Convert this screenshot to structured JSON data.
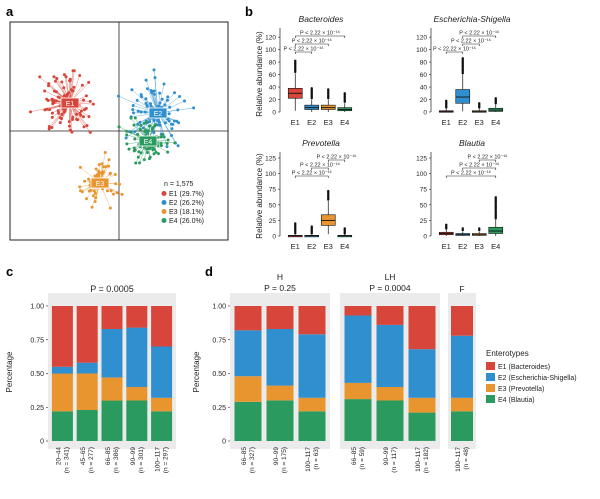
{
  "colors": {
    "E1": "#d8453a",
    "E2": "#2f8fcf",
    "E3": "#e8952f",
    "E4": "#2a9a5e",
    "dark": "#36474f",
    "panel_bg": "#ebebeb"
  },
  "panel_labels": {
    "a": "a",
    "b": "b",
    "c": "c",
    "d": "d"
  },
  "chart_data": [
    {
      "panel": "a",
      "type": "scatter",
      "title": "",
      "annotation": "n = 1,575",
      "clusters": [
        {
          "name": "E1",
          "label": "E1 (29.7%)",
          "share": 29.7,
          "color": "#d8453a"
        },
        {
          "name": "E2",
          "label": "E2 (26.2%)",
          "share": 26.2,
          "color": "#2f8fcf"
        },
        {
          "name": "E3",
          "label": "E3 (18.1%)",
          "share": 18.1,
          "color": "#e8952f"
        },
        {
          "name": "E4",
          "label": "E4 (26.0%)",
          "share": 26.0,
          "color": "#2a9a5e"
        }
      ]
    },
    {
      "panel": "b",
      "type": "box",
      "ylabel": "Relative abundance (%)",
      "categories": [
        "E1",
        "E2",
        "E3",
        "E4"
      ],
      "facets": [
        {
          "title": "Bacteroides",
          "ylim": [
            0,
            125
          ],
          "yticks": [
            0,
            20,
            40,
            60,
            80,
            100,
            120
          ],
          "p_labels": [
            "P < 2.22 × 10⁻¹⁶",
            "P < 2.22 × 10⁻¹⁶",
            "P < 2.22 × 10⁻¹⁶"
          ],
          "boxes": [
            {
              "q1": 22,
              "median": 30,
              "q3": 38,
              "whisker_low": 2,
              "whisker_high": 62,
              "out_max": 82
            },
            {
              "q1": 4,
              "median": 7,
              "q3": 11,
              "whisker_low": 0,
              "whisker_high": 20,
              "out_max": 38
            },
            {
              "q1": 4,
              "median": 7,
              "q3": 11,
              "whisker_low": 0,
              "whisker_high": 20,
              "out_max": 36
            },
            {
              "q1": 2,
              "median": 4,
              "q3": 7,
              "whisker_low": 0,
              "whisker_high": 14,
              "out_max": 30
            }
          ]
        },
        {
          "title": "Escherichia-Shigella",
          "ylim": [
            0,
            125
          ],
          "yticks": [
            0,
            20,
            40,
            60,
            80,
            100,
            120
          ],
          "p_labels": [
            "P < 22.22 × 10⁻¹⁶",
            "P < 2.22 × 10⁻¹⁶",
            "P < 2.22 × 10⁻¹⁶"
          ],
          "boxes": [
            {
              "q1": 0,
              "median": 1,
              "q3": 2,
              "whisker_low": 0,
              "whisker_high": 5,
              "out_max": 18
            },
            {
              "q1": 14,
              "median": 24,
              "q3": 36,
              "whisker_low": 1,
              "whisker_high": 60,
              "out_max": 86
            },
            {
              "q1": 0,
              "median": 1,
              "q3": 2,
              "whisker_low": 0,
              "whisker_high": 5,
              "out_max": 14
            },
            {
              "q1": 1,
              "median": 3,
              "q3": 6,
              "whisker_low": 0,
              "whisker_high": 12,
              "out_max": 22
            }
          ]
        },
        {
          "title": "Prevotella",
          "ylim": [
            0,
            125
          ],
          "yticks": [
            0,
            25,
            50,
            75,
            100,
            125
          ],
          "p_labels": [
            "P < 2.22 × 10⁻¹⁶",
            "P < 2.22 × 10⁻¹⁶",
            "P < 2.22 × 10⁻¹⁶"
          ],
          "boxes": [
            {
              "q1": 0,
              "median": 0.5,
              "q3": 1,
              "whisker_low": 0,
              "whisker_high": 2,
              "out_max": 20
            },
            {
              "q1": 0,
              "median": 0.5,
              "q3": 1,
              "whisker_low": 0,
              "whisker_high": 2,
              "out_max": 15
            },
            {
              "q1": 17,
              "median": 25,
              "q3": 34,
              "whisker_low": 3,
              "whisker_high": 56,
              "out_max": 72
            },
            {
              "q1": 0,
              "median": 0.5,
              "q3": 1,
              "whisker_low": 0,
              "whisker_high": 2,
              "out_max": 12
            }
          ]
        },
        {
          "title": "Blautia",
          "ylim": [
            0,
            125
          ],
          "yticks": [
            0,
            25,
            50,
            75,
            100,
            125
          ],
          "p_labels": [
            "P < 2.22 × 10⁻¹⁶",
            "P < 2.22 × 10⁻¹⁶",
            "P < 2.22 × 10⁻¹⁶"
          ],
          "boxes": [
            {
              "q1": 2,
              "median": 4,
              "q3": 6,
              "whisker_low": 0,
              "whisker_high": 10,
              "out_max": 18
            },
            {
              "q1": 1,
              "median": 2,
              "q3": 4,
              "whisker_low": 0,
              "whisker_high": 7,
              "out_max": 12
            },
            {
              "q1": 1,
              "median": 2,
              "q3": 4,
              "whisker_low": 0,
              "whisker_high": 7,
              "out_max": 12
            },
            {
              "q1": 4,
              "median": 8,
              "q3": 14,
              "whisker_low": 0,
              "whisker_high": 26,
              "out_max": 62
            }
          ]
        }
      ]
    },
    {
      "panel": "c",
      "type": "bar",
      "stacked": true,
      "title": "P = 0.0005",
      "ylabel": "Percentage",
      "ylim": [
        0,
        1.0
      ],
      "yticks": [
        "0",
        "0.25",
        "0.50",
        "0.75",
        "1.00"
      ],
      "categories": [
        "20–44",
        "45–65",
        "66–85",
        "90–99",
        "100–117"
      ],
      "n_labels": [
        "(n = 341)",
        "(n = 277)",
        "(n = 386)",
        "(n = 301)",
        "(n = 297)"
      ],
      "series": [
        {
          "name": "E4 (Blautia)",
          "values": [
            0.22,
            0.23,
            0.3,
            0.3,
            0.22
          ]
        },
        {
          "name": "E3 (Prevotella)",
          "values": [
            0.28,
            0.27,
            0.17,
            0.1,
            0.1
          ]
        },
        {
          "name": "E2 (Escherichia-Shigella)",
          "values": [
            0.05,
            0.08,
            0.36,
            0.44,
            0.38
          ]
        },
        {
          "name": "E1 (Bacteroides)",
          "values": [
            0.45,
            0.42,
            0.17,
            0.16,
            0.3
          ]
        }
      ]
    },
    {
      "panel": "d",
      "type": "bar",
      "stacked": true,
      "ylabel": "Percentage",
      "ylim": [
        0,
        1.0
      ],
      "yticks": [
        "0",
        "0.25",
        "0.50",
        "0.75",
        "1.00"
      ],
      "legend_title": "Enterotypes",
      "legend": [
        "E1 (Bacteroides)",
        "E2 (Escherichia-Shigella)",
        "E3 (Prevotella)",
        "E4 (Blautia)"
      ],
      "groups": [
        {
          "name": "H",
          "p_label": "P = 0.25",
          "categories": [
            "66–85",
            "90–99",
            "100–117"
          ],
          "n_labels": [
            "(n = 327)",
            "(n = 175)",
            "(n = 63)"
          ],
          "series": [
            {
              "name": "E4",
              "values": [
                0.29,
                0.3,
                0.22
              ]
            },
            {
              "name": "E3",
              "values": [
                0.19,
                0.11,
                0.1
              ]
            },
            {
              "name": "E2",
              "values": [
                0.34,
                0.42,
                0.47
              ]
            },
            {
              "name": "E1",
              "values": [
                0.18,
                0.17,
                0.21
              ]
            }
          ]
        },
        {
          "name": "LH",
          "p_label": "P = 0.0004",
          "categories": [
            "66–85",
            "90–99",
            "100–117"
          ],
          "n_labels": [
            "(n = 59)",
            "(n = 117)",
            "(n = 182)"
          ],
          "series": [
            {
              "name": "E4",
              "values": [
                0.31,
                0.3,
                0.21
              ]
            },
            {
              "name": "E3",
              "values": [
                0.12,
                0.1,
                0.11
              ]
            },
            {
              "name": "E2",
              "values": [
                0.5,
                0.46,
                0.36
              ]
            },
            {
              "name": "E1",
              "values": [
                0.07,
                0.14,
                0.32
              ]
            }
          ]
        },
        {
          "name": "F",
          "p_label": "",
          "categories": [
            "100–117"
          ],
          "n_labels": [
            "(n = 48)"
          ],
          "series": [
            {
              "name": "E4",
              "values": [
                0.22
              ]
            },
            {
              "name": "E3",
              "values": [
                0.1
              ]
            },
            {
              "name": "E2",
              "values": [
                0.46
              ]
            },
            {
              "name": "E1",
              "values": [
                0.22
              ]
            }
          ]
        }
      ]
    }
  ]
}
